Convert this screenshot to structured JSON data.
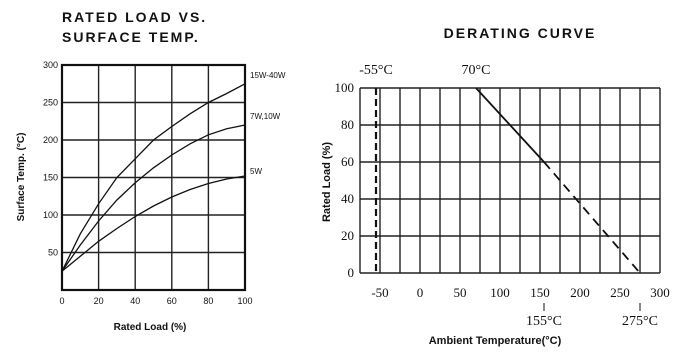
{
  "chart_data": [
    {
      "type": "line",
      "title_lines": [
        "RATED LOAD VS.",
        "SURFACE TEMP."
      ],
      "xlabel": "Rated Load (%)",
      "ylabel": "Surface Temp. (°C)",
      "xlim": [
        0,
        100
      ],
      "ylim": [
        0,
        300
      ],
      "xticks": [
        "0",
        "20",
        "40",
        "60",
        "80",
        "100"
      ],
      "yticks": [
        "50",
        "100",
        "150",
        "200",
        "250",
        "300"
      ],
      "grid": true,
      "series": [
        {
          "name": "15W-40W",
          "x": [
            0,
            10,
            20,
            30,
            40,
            50,
            60,
            70,
            80,
            90,
            100
          ],
          "y": [
            25,
            75,
            115,
            150,
            175,
            200,
            218,
            235,
            250,
            262,
            275
          ]
        },
        {
          "name": "7W,10W",
          "x": [
            0,
            10,
            20,
            30,
            40,
            50,
            60,
            70,
            80,
            90,
            100
          ],
          "y": [
            25,
            60,
            92,
            120,
            143,
            163,
            180,
            195,
            207,
            215,
            220
          ]
        },
        {
          "name": "5W",
          "x": [
            0,
            10,
            20,
            30,
            40,
            50,
            60,
            70,
            80,
            90,
            100
          ],
          "y": [
            25,
            45,
            65,
            82,
            98,
            112,
            124,
            134,
            142,
            148,
            152
          ]
        }
      ]
    },
    {
      "type": "line",
      "title": "DERATING CURVE",
      "xlabel": "Ambient Temperature(°C)",
      "ylabel": "Rated Load (%)",
      "xlim": [
        -75,
        300
      ],
      "ylim": [
        0,
        100
      ],
      "xticks": [
        "-50",
        "0",
        "50",
        "100",
        "150",
        "200",
        "250",
        "300"
      ],
      "yticks": [
        "0",
        "20",
        "40",
        "60",
        "80",
        "100"
      ],
      "grid": true,
      "series": [
        {
          "name": "",
          "x": [
            70,
            155
          ],
          "y": [
            100,
            60
          ],
          "style": "solid"
        },
        {
          "name": "",
          "x": [
            155,
            275
          ],
          "y": [
            60,
            0
          ],
          "style": "dashed"
        }
      ],
      "markers": [
        {
          "x": -55,
          "style": "dashed-vertical"
        }
      ],
      "annotations": [
        {
          "text": "-55°C",
          "at_x": -55,
          "position": "top"
        },
        {
          "text": "70°C",
          "at_x": 70,
          "position": "top"
        },
        {
          "text": "155°C",
          "at_x": 155,
          "position": "bottom"
        },
        {
          "text": "275°C",
          "at_x": 275,
          "position": "bottom"
        }
      ]
    }
  ]
}
